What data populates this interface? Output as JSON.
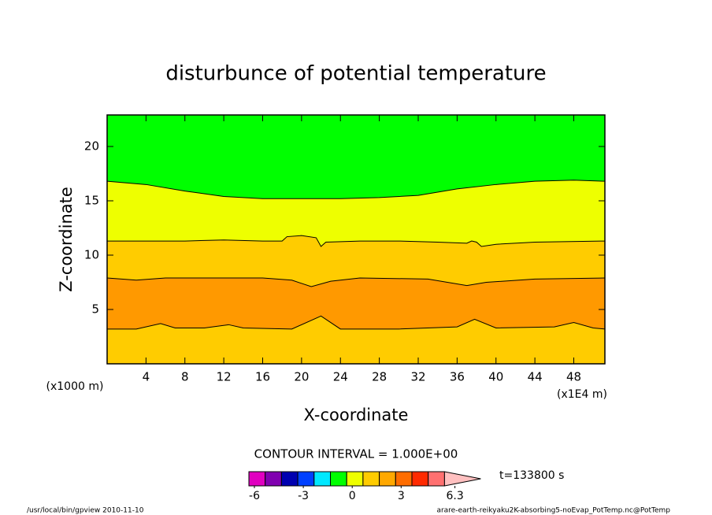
{
  "chart_data": {
    "type": "contour",
    "title": "disturbunce of potential temperature",
    "x_label": "X-coordinate",
    "y_label": "Z-coordinate",
    "x_unit_label": "(x1E4 m)",
    "y_unit_label": "(x1000 m)",
    "xlim": [
      0,
      51.2
    ],
    "ylim": [
      0,
      22.9
    ],
    "xticks": [
      4,
      8,
      12,
      16,
      20,
      24,
      28,
      32,
      36,
      40,
      44,
      48
    ],
    "yticks": [
      5,
      10,
      15,
      20
    ],
    "fill_top": "#00ff00",
    "contours": [
      {
        "level": 0,
        "fill_below": "#eeff00",
        "x": [
          0,
          4,
          8,
          12,
          16,
          20,
          24,
          28,
          32,
          36,
          40,
          44,
          48,
          51.2
        ],
        "z": [
          16.8,
          16.5,
          15.9,
          15.4,
          15.2,
          15.2,
          15.2,
          15.3,
          15.5,
          16.1,
          16.5,
          16.8,
          16.9,
          16.8
        ]
      },
      {
        "level": 1,
        "fill_below": "#ffcc00",
        "x": [
          0,
          8,
          12,
          16,
          18,
          18.5,
          20,
          21.5,
          22,
          22.5,
          26,
          30,
          34,
          37,
          37.5,
          38,
          38.5,
          40,
          44,
          51.2
        ],
        "z": [
          11.3,
          11.3,
          11.4,
          11.3,
          11.3,
          11.7,
          11.8,
          11.6,
          10.8,
          11.2,
          11.3,
          11.3,
          11.2,
          11.1,
          11.3,
          11.2,
          10.8,
          11.0,
          11.2,
          11.3
        ]
      },
      {
        "level": 2,
        "fill_below": "#ff9900",
        "x": [
          0,
          3,
          6,
          16,
          19,
          21,
          23,
          26,
          33,
          37,
          39,
          44,
          51.2
        ],
        "z": [
          7.9,
          7.7,
          7.9,
          7.9,
          7.7,
          7.1,
          7.6,
          7.9,
          7.8,
          7.2,
          7.5,
          7.8,
          7.9
        ]
      },
      {
        "level": 2,
        "fill_below": "#ffcc00",
        "x": [
          0,
          3,
          5.5,
          7,
          10,
          12.5,
          14,
          19,
          22,
          24,
          30,
          36,
          37.8,
          40,
          46,
          48,
          50,
          51.2
        ],
        "z": [
          3.2,
          3.2,
          3.7,
          3.3,
          3.3,
          3.6,
          3.3,
          3.2,
          4.4,
          3.2,
          3.2,
          3.4,
          4.1,
          3.3,
          3.4,
          3.8,
          3.3,
          3.2
        ]
      }
    ],
    "contour_interval_label": "CONTOUR INTERVAL = 1.000E+00",
    "colorbar": {
      "colors": [
        "#e000c0",
        "#8000b0",
        "#0000b0",
        "#0040ff",
        "#00e8ff",
        "#00ff00",
        "#eeff00",
        "#ffcc00",
        "#ffa800",
        "#ff6d00",
        "#ff2a00",
        "#ff7070",
        "#ffc0c0"
      ],
      "ticks": [
        -6,
        -3,
        0,
        3,
        6.3
      ]
    },
    "time_label": "t=133800 s",
    "footer_left": "/usr/local/bin/gpview  2010-11-10",
    "footer_right": "arare-earth-reikyaku2K-absorbing5-noEvap_PotTemp.nc@PotTemp"
  }
}
